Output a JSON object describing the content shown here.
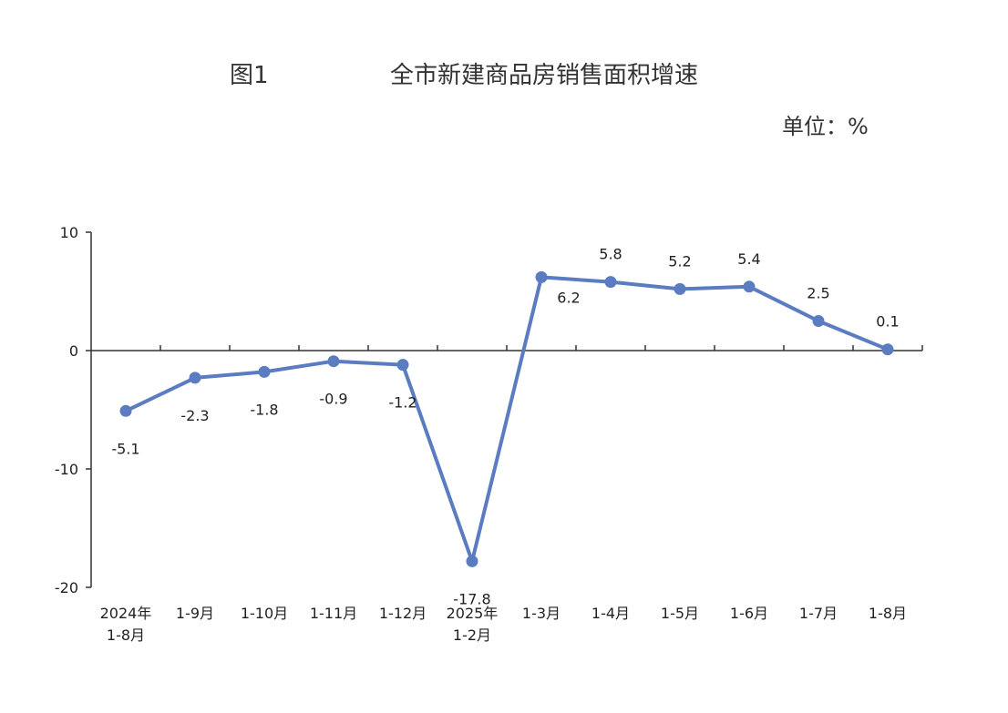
{
  "header": {
    "figure_label": "图1",
    "title": "全市新建商品房销售面积增速",
    "unit": "单位：%"
  },
  "chart_data": {
    "type": "line",
    "title": "全市新建商品房销售面积增速",
    "unit": "单位：%",
    "categories": [
      [
        "2024年",
        "1-8月"
      ],
      [
        "1-9月"
      ],
      [
        "1-10月"
      ],
      [
        "1-11月"
      ],
      [
        "1-12月"
      ],
      [
        "2025年",
        "1-2月"
      ],
      [
        "1-3月"
      ],
      [
        "1-4月"
      ],
      [
        "1-5月"
      ],
      [
        "1-6月"
      ],
      [
        "1-7月"
      ],
      [
        "1-8月"
      ]
    ],
    "values": [
      -5.1,
      -2.3,
      -1.8,
      -0.9,
      -1.2,
      -17.8,
      6.2,
      5.8,
      5.2,
      5.4,
      2.5,
      0.1
    ],
    "data_labels": [
      "-5.1",
      "-2.3",
      "-1.8",
      "-0.9",
      "-1.2",
      "-17.8",
      "6.2",
      "5.8",
      "5.2",
      "5.4",
      "2.5",
      "0.1"
    ],
    "label_positions": [
      "below",
      "below",
      "below",
      "below",
      "below",
      "below",
      "below",
      "above",
      "above",
      "above",
      "above",
      "above"
    ],
    "ylim": [
      -20,
      10
    ],
    "yticks": [
      10,
      0,
      -10,
      -20
    ],
    "line_color": "#5b7cc0",
    "grid": false
  }
}
